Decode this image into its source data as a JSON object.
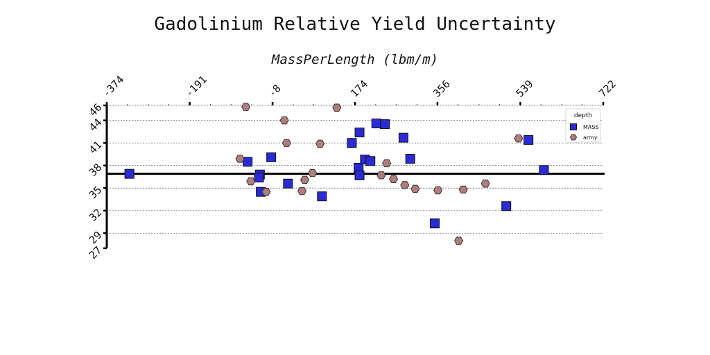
{
  "chart_data": {
    "type": "scatter",
    "title": "Gadolinium Relative Yield Uncertainty",
    "xlabel": "MassPerLength (lbm/m)",
    "ylabel": "",
    "xlim": [
      -374,
      722
    ],
    "ylim": [
      27,
      46
    ],
    "x_ticks": [
      "-374",
      "-191",
      "-8",
      "174",
      "356",
      "539",
      "722"
    ],
    "y_ticks": [
      "27",
      "29",
      "32",
      "35",
      "38",
      "41",
      "44",
      "46"
    ],
    "x_axis_position": "top",
    "grid": "horizontal dashed",
    "reference_line_y": 36.9,
    "legend": {
      "title": "depth",
      "placement": "top-right"
    },
    "series": [
      {
        "name": "MASS",
        "marker": "square",
        "color": "#2b2bd6",
        "points": [
          [
            -324,
            36.9
          ],
          [
            -63,
            38.5
          ],
          [
            -36,
            36.8
          ],
          [
            -38,
            36.4
          ],
          [
            -34,
            34.5
          ],
          [
            -11,
            39.1
          ],
          [
            26,
            35.6
          ],
          [
            101,
            33.9
          ],
          [
            167,
            41.0
          ],
          [
            182,
            37.7
          ],
          [
            184,
            36.7
          ],
          [
            184,
            42.4
          ],
          [
            196,
            38.8
          ],
          [
            208,
            38.6
          ],
          [
            221,
            43.6
          ],
          [
            240,
            43.5
          ],
          [
            281,
            41.7
          ],
          [
            296,
            38.9
          ],
          [
            350,
            30.3
          ],
          [
            508,
            32.6
          ],
          [
            557,
            41.4
          ],
          [
            591,
            37.4
          ]
        ]
      },
      {
        "name": "army",
        "marker": "hexagon",
        "color": "#b07c7c",
        "points": [
          [
            -80,
            38.9
          ],
          [
            -67,
            45.8
          ],
          [
            -56,
            35.9
          ],
          [
            -22,
            34.5
          ],
          [
            18,
            44.0
          ],
          [
            23,
            41.0
          ],
          [
            57,
            34.6
          ],
          [
            63,
            36.1
          ],
          [
            80,
            37.0
          ],
          [
            97,
            40.9
          ],
          [
            134,
            45.7
          ],
          [
            232,
            36.7
          ],
          [
            244,
            38.3
          ],
          [
            259,
            36.2
          ],
          [
            284,
            35.4
          ],
          [
            307,
            34.9
          ],
          [
            357,
            34.7
          ],
          [
            403,
            28.0
          ],
          [
            413,
            34.8
          ],
          [
            462,
            35.6
          ],
          [
            535,
            41.6
          ]
        ]
      }
    ]
  }
}
